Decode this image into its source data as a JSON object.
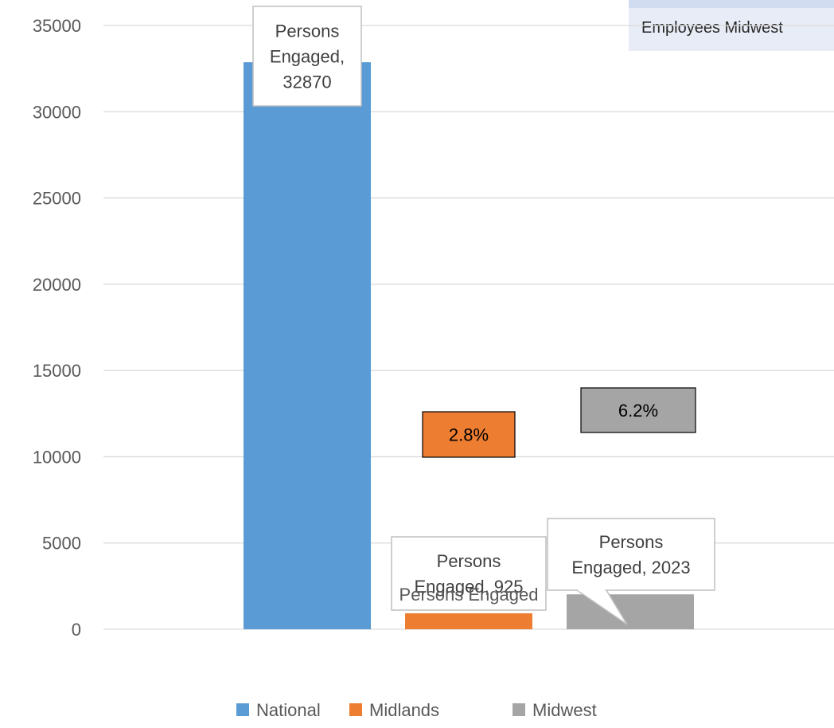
{
  "corner_label": "Employees Midwest",
  "chart_data": {
    "type": "bar",
    "categories": [
      "Persons Engaged"
    ],
    "series": [
      {
        "name": "National",
        "values": [
          32870
        ],
        "color": "#5b9bd5",
        "data_label": [
          "Persons",
          "Engaged,",
          "32870"
        ]
      },
      {
        "name": "Midlands",
        "values": [
          925
        ],
        "color": "#ed7d31",
        "data_label": [
          "Persons",
          "Engaged, 925"
        ],
        "share_label": "2.8%"
      },
      {
        "name": "Midwest",
        "values": [
          2023
        ],
        "color": "#a5a5a5",
        "data_label": [
          "Persons",
          "Engaged, 2023"
        ],
        "share_label": "6.2%"
      }
    ],
    "ylim": [
      0,
      35000
    ],
    "yticks": [
      0,
      5000,
      10000,
      15000,
      20000,
      25000,
      30000,
      35000
    ],
    "grid": true,
    "legend": "bottom",
    "title": "",
    "xlabel": "",
    "ylabel": ""
  }
}
